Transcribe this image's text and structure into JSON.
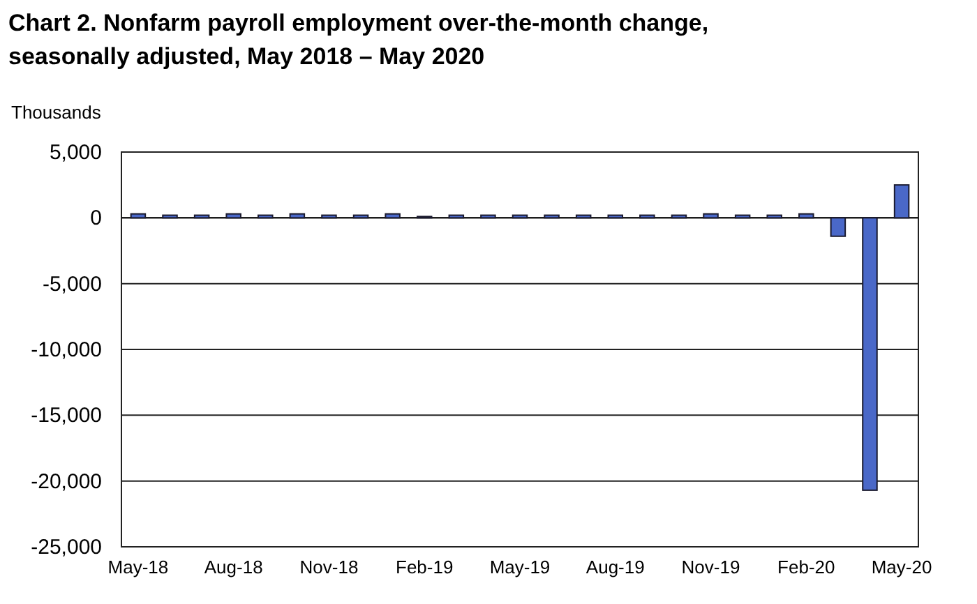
{
  "chart_data": {
    "type": "bar",
    "title": "Chart 2. Nonfarm payroll employment over-the-month change,",
    "subtitle": "seasonally adjusted, May 2018 – May 2020",
    "ylabel": "Thousands",
    "categories": [
      "May-18",
      null,
      null,
      "Aug-18",
      null,
      null,
      "Nov-18",
      null,
      null,
      "Feb-19",
      null,
      null,
      "May-19",
      null,
      null,
      "Aug-19",
      null,
      null,
      "Nov-19",
      null,
      null,
      "Feb-20",
      null,
      null,
      "May-20"
    ],
    "values": [
      300,
      200,
      200,
      300,
      200,
      300,
      200,
      200,
      300,
      100,
      200,
      200,
      200,
      200,
      200,
      200,
      200,
      200,
      300,
      200,
      200,
      300,
      -1400,
      -20700,
      2500
    ],
    "color": "#4a68c8",
    "ylim": [
      -25000,
      5000
    ],
    "yticks": [
      {
        "value": -25000,
        "label": "-25,000"
      },
      {
        "value": -20000,
        "label": "-20,000"
      },
      {
        "value": -15000,
        "label": "-15,000"
      },
      {
        "value": -10000,
        "label": "-10,000"
      },
      {
        "value": -5000,
        "label": "-5,000"
      },
      0,
      {
        "value": 5000,
        "label": "5,000"
      }
    ],
    "grid": "y"
  }
}
